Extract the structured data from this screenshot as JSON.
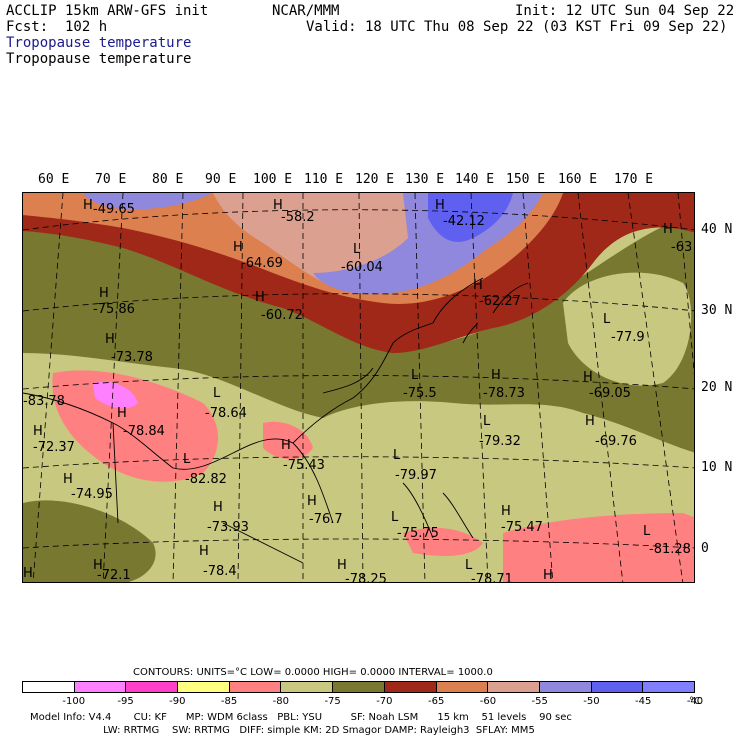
{
  "header": {
    "model": "ACCLIP 15km ARW-GFS init",
    "fcst": "Fcst:  102 h",
    "center": "NCAR/MMM",
    "init": "Init: 12 UTC Sun 04 Sep 22",
    "valid": "Valid: 18 UTC Thu 08 Sep 22 (03 KST Fri 09 Sep 22)",
    "field_line1": "Tropopause temperature",
    "field_line2": "Tropopause temperature"
  },
  "lon_labels": [
    "60 E",
    "70 E",
    "80 E",
    "90 E",
    "100 E",
    "110 E",
    "120 E",
    "130 E",
    "140 E",
    "150 E",
    "160 E",
    "170 E"
  ],
  "lat_labels": [
    "40 N",
    "30 N",
    "20 N",
    "10 N",
    "0"
  ],
  "map_labels": {
    "H": "H",
    "L": "L",
    "values": [
      "-49.65",
      "-58.2",
      "-42.12",
      "-63",
      "-64.69",
      "-60.04",
      "-75.86",
      "-60.72",
      "-62.27",
      "-77.9",
      "-73.78",
      "-69.05",
      "-83.78",
      "-78.64",
      "-75.5",
      "-78.73",
      "-72.37",
      "-78.84",
      "-79.32",
      "-69.76",
      "-75.43",
      "-82.82",
      "-79.97",
      "-74.95",
      "-76.7",
      "-73.93",
      "-75.75",
      "-75.47",
      "-81.28",
      "-72.1",
      "-78.4",
      "-78.25",
      "-78.71"
    ]
  },
  "legend": {
    "contours_line": "CONTOURS:  UNITS=°C  LOW=  0.0000          HIGH=  0.0000          INTERVAL=   1000.0",
    "ticks": [
      "-100",
      "-95",
      "-90",
      "-85",
      "-80",
      "-75",
      "-70",
      "-65",
      "-60",
      "-55",
      "-50",
      "-45",
      "-40"
    ],
    "unit": "°C",
    "colors": [
      "#ffffff",
      "#ff80ff",
      "#ff40c8",
      "#ffff80",
      "#ff8080",
      "#c8c880",
      "#787830",
      "#a02818",
      "#dc8050",
      "#dca090",
      "#9088dc",
      "#6060f0",
      "#8080ff"
    ]
  },
  "footer": {
    "line1": "Model Info: V4.4       CU: KF      MP: WDM 6class   PBL: YSU         SF: Noah LSM      15 km    51 levels    90 sec",
    "line2": "                       LW: RRTMG    SW: RRTMG   DIFF: simple KM: 2D Smagor DAMP: Rayleigh3  SFLAY: MM5"
  }
}
